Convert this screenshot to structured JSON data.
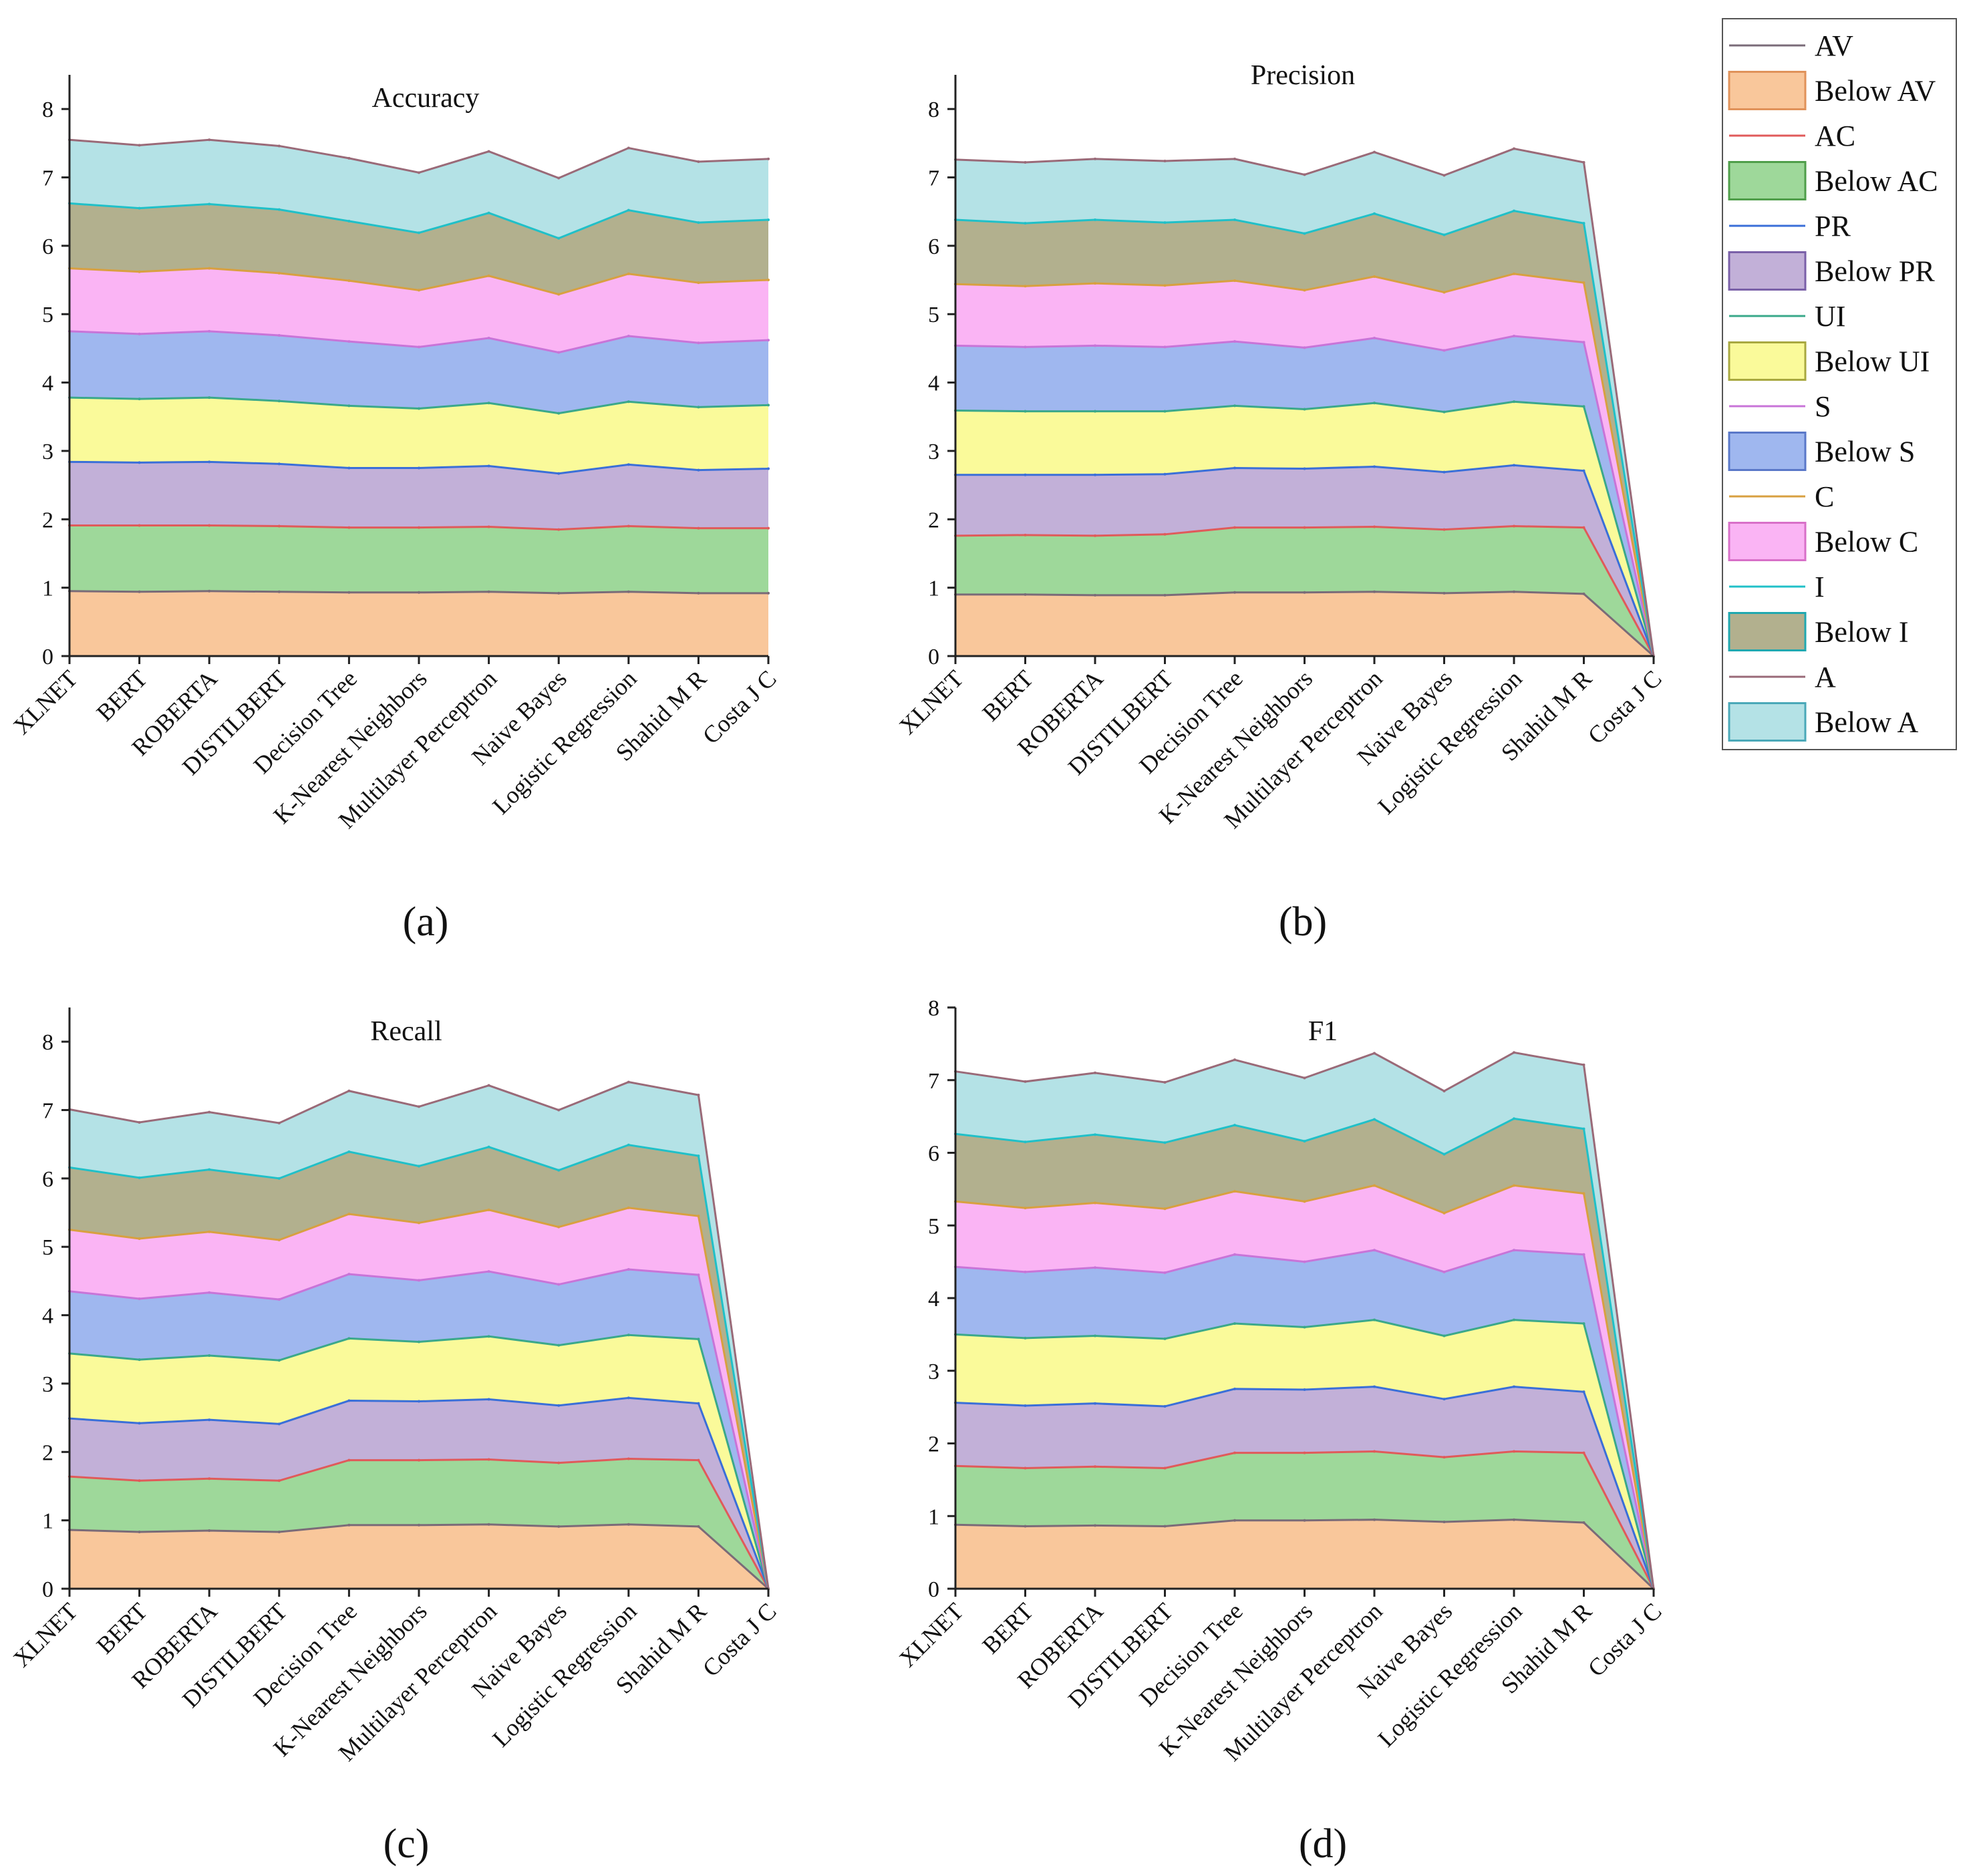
{
  "figure": {
    "legend": {
      "placement": "right",
      "entries": [
        {
          "label": "AV",
          "kind": "line",
          "color": "#7a6b78"
        },
        {
          "label": "Below AV",
          "kind": "area",
          "color": "#f9c79b",
          "border": "#e0925a"
        },
        {
          "label": "AC",
          "kind": "line",
          "color": "#e05a5a"
        },
        {
          "label": "Below AC",
          "kind": "area",
          "color": "#9ed89a",
          "border": "#4f9e4a"
        },
        {
          "label": "PR",
          "kind": "line",
          "color": "#3a6fd8"
        },
        {
          "label": "Below PR",
          "kind": "area",
          "color": "#c2b0d8",
          "border": "#7a60a8"
        },
        {
          "label": "UI",
          "kind": "line",
          "color": "#3aa88a"
        },
        {
          "label": "Below UI",
          "kind": "area",
          "color": "#fafa9a",
          "border": "#a8a840"
        },
        {
          "label": "S",
          "kind": "line",
          "color": "#c874d8"
        },
        {
          "label": "Below S",
          "kind": "area",
          "color": "#9fb7ef",
          "border": "#5a78c8"
        },
        {
          "label": "C",
          "kind": "line",
          "color": "#d8a040"
        },
        {
          "label": "Below C",
          "kind": "area",
          "color": "#fab4f4",
          "border": "#d870c8"
        },
        {
          "label": "I",
          "kind": "line",
          "color": "#20c0c8"
        },
        {
          "label": "Below I",
          "kind": "area",
          "color": "#b2b08e",
          "border": "#20a8b0"
        },
        {
          "label": "A",
          "kind": "line",
          "color": "#9a6a78"
        },
        {
          "label": "Below A",
          "kind": "area",
          "color": "#b4e2e6",
          "border": "#4aa8b8"
        }
      ]
    }
  },
  "chart_data": [
    {
      "type": "area",
      "stacked": true,
      "panel_label": "(a)",
      "title": "Accuracy",
      "xlabel": "",
      "ylabel": "",
      "ylim": [
        0,
        8.5
      ],
      "yticks": [
        "0",
        "1",
        "2",
        "3",
        "4",
        "5",
        "6",
        "7",
        "8"
      ],
      "categories": [
        "XLNET",
        "BERT",
        "ROBERTA",
        "DISTILBERT",
        "Decision Tree",
        "K-Nearest Neighbors",
        "Multilayer Perceptron",
        "Naive Bayes",
        "Logistic Regression",
        "Shahid M R",
        "Costa J C"
      ],
      "series": [
        {
          "name": "AV",
          "values": [
            0.95,
            0.94,
            0.95,
            0.94,
            0.93,
            0.93,
            0.94,
            0.92,
            0.94,
            0.92,
            0.92
          ]
        },
        {
          "name": "AC",
          "values": [
            0.96,
            0.97,
            0.96,
            0.96,
            0.95,
            0.95,
            0.95,
            0.93,
            0.96,
            0.95,
            0.95
          ]
        },
        {
          "name": "PR",
          "values": [
            0.93,
            0.92,
            0.93,
            0.91,
            0.87,
            0.87,
            0.89,
            0.82,
            0.9,
            0.85,
            0.87
          ]
        },
        {
          "name": "UI",
          "values": [
            0.94,
            0.93,
            0.94,
            0.92,
            0.91,
            0.87,
            0.92,
            0.88,
            0.92,
            0.92,
            0.93
          ]
        },
        {
          "name": "S",
          "values": [
            0.97,
            0.95,
            0.97,
            0.96,
            0.94,
            0.9,
            0.95,
            0.89,
            0.96,
            0.94,
            0.95
          ]
        },
        {
          "name": "C",
          "values": [
            0.92,
            0.91,
            0.92,
            0.91,
            0.89,
            0.83,
            0.91,
            0.85,
            0.91,
            0.88,
            0.88
          ]
        },
        {
          "name": "I",
          "values": [
            0.95,
            0.93,
            0.94,
            0.93,
            0.87,
            0.84,
            0.92,
            0.82,
            0.93,
            0.88,
            0.88
          ]
        },
        {
          "name": "A",
          "values": [
            0.93,
            0.92,
            0.94,
            0.93,
            0.92,
            0.88,
            0.9,
            0.88,
            0.91,
            0.89,
            0.89
          ]
        }
      ]
    },
    {
      "type": "area",
      "stacked": true,
      "panel_label": "(b)",
      "title": "Precision",
      "xlabel": "",
      "ylabel": "",
      "ylim": [
        0,
        8.5
      ],
      "yticks": [
        "0",
        "1",
        "2",
        "3",
        "4",
        "5",
        "6",
        "7",
        "8"
      ],
      "categories": [
        "XLNET",
        "BERT",
        "ROBERTA",
        "DISTILBERT",
        "Decision Tree",
        "K-Nearest Neighbors",
        "Multilayer Perceptron",
        "Naive Bayes",
        "Logistic Regression",
        "Shahid M R",
        "Costa J C"
      ],
      "series": [
        {
          "name": "AV",
          "values": [
            0.9,
            0.9,
            0.89,
            0.89,
            0.93,
            0.93,
            0.94,
            0.92,
            0.94,
            0.91,
            0
          ]
        },
        {
          "name": "AC",
          "values": [
            0.86,
            0.87,
            0.87,
            0.89,
            0.95,
            0.95,
            0.95,
            0.93,
            0.96,
            0.97,
            0
          ]
        },
        {
          "name": "PR",
          "values": [
            0.89,
            0.88,
            0.89,
            0.88,
            0.87,
            0.86,
            0.88,
            0.84,
            0.89,
            0.83,
            0
          ]
        },
        {
          "name": "UI",
          "values": [
            0.94,
            0.93,
            0.93,
            0.92,
            0.91,
            0.87,
            0.93,
            0.88,
            0.93,
            0.94,
            0
          ]
        },
        {
          "name": "S",
          "values": [
            0.95,
            0.94,
            0.96,
            0.94,
            0.94,
            0.9,
            0.95,
            0.9,
            0.96,
            0.94,
            0
          ]
        },
        {
          "name": "C",
          "values": [
            0.9,
            0.89,
            0.91,
            0.9,
            0.89,
            0.84,
            0.9,
            0.85,
            0.91,
            0.87,
            0
          ]
        },
        {
          "name": "I",
          "values": [
            0.94,
            0.92,
            0.93,
            0.92,
            0.89,
            0.83,
            0.92,
            0.84,
            0.92,
            0.87,
            0
          ]
        },
        {
          "name": "A",
          "values": [
            0.88,
            0.89,
            0.89,
            0.9,
            0.89,
            0.86,
            0.9,
            0.87,
            0.91,
            0.89,
            0
          ]
        }
      ]
    },
    {
      "type": "area",
      "stacked": true,
      "panel_label": "(c)",
      "title": "Recall",
      "xlabel": "",
      "ylabel": "",
      "ylim": [
        0,
        8.5
      ],
      "yticks": [
        "0",
        "1",
        "2",
        "3",
        "4",
        "5",
        "6",
        "7",
        "8"
      ],
      "categories": [
        "XLNET",
        "BERT",
        "ROBERTA",
        "DISTILBERT",
        "Decision Tree",
        "K-Nearest Neighbors",
        "Multilayer Perceptron",
        "Naive Bayes",
        "Logistic Regression",
        "Shahid M R",
        "Costa J C"
      ],
      "series": [
        {
          "name": "AV",
          "values": [
            0.86,
            0.83,
            0.85,
            0.83,
            0.93,
            0.93,
            0.94,
            0.91,
            0.94,
            0.91,
            0
          ]
        },
        {
          "name": "AC",
          "values": [
            0.78,
            0.75,
            0.76,
            0.75,
            0.95,
            0.95,
            0.95,
            0.93,
            0.96,
            0.97,
            0
          ]
        },
        {
          "name": "PR",
          "values": [
            0.85,
            0.84,
            0.86,
            0.83,
            0.87,
            0.86,
            0.88,
            0.84,
            0.89,
            0.83,
            0
          ]
        },
        {
          "name": "UI",
          "values": [
            0.95,
            0.93,
            0.94,
            0.93,
            0.91,
            0.87,
            0.92,
            0.88,
            0.92,
            0.94,
            0
          ]
        },
        {
          "name": "S",
          "values": [
            0.91,
            0.89,
            0.92,
            0.89,
            0.94,
            0.9,
            0.95,
            0.89,
            0.96,
            0.94,
            0
          ]
        },
        {
          "name": "C",
          "values": [
            0.9,
            0.88,
            0.89,
            0.87,
            0.88,
            0.84,
            0.9,
            0.84,
            0.9,
            0.86,
            0
          ]
        },
        {
          "name": "I",
          "values": [
            0.91,
            0.89,
            0.91,
            0.9,
            0.91,
            0.83,
            0.92,
            0.83,
            0.92,
            0.88,
            0
          ]
        },
        {
          "name": "A",
          "values": [
            0.85,
            0.81,
            0.84,
            0.81,
            0.89,
            0.87,
            0.9,
            0.88,
            0.92,
            0.89,
            0
          ]
        }
      ]
    },
    {
      "type": "area",
      "stacked": true,
      "panel_label": "(d)",
      "title": "F1",
      "xlabel": "",
      "ylabel": "",
      "ylim": [
        0,
        8
      ],
      "yticks": [
        "0",
        "1",
        "2",
        "3",
        "4",
        "5",
        "6",
        "7",
        "8"
      ],
      "categories": [
        "XLNET",
        "BERT",
        "ROBERTA",
        "DISTILBERT",
        "Decision Tree",
        "K-Nearest Neighbors",
        "Multilayer Perceptron",
        "Naive Bayes",
        "Logistic Regression",
        "Shahid M R",
        "Costa J C"
      ],
      "series": [
        {
          "name": "AV",
          "values": [
            0.88,
            0.86,
            0.87,
            0.86,
            0.94,
            0.94,
            0.95,
            0.92,
            0.95,
            0.91,
            0
          ]
        },
        {
          "name": "AC",
          "values": [
            0.81,
            0.8,
            0.81,
            0.8,
            0.93,
            0.93,
            0.94,
            0.89,
            0.94,
            0.96,
            0
          ]
        },
        {
          "name": "PR",
          "values": [
            0.87,
            0.86,
            0.87,
            0.85,
            0.88,
            0.87,
            0.89,
            0.8,
            0.89,
            0.84,
            0
          ]
        },
        {
          "name": "UI",
          "values": [
            0.94,
            0.93,
            0.93,
            0.93,
            0.9,
            0.86,
            0.92,
            0.87,
            0.92,
            0.94,
            0
          ]
        },
        {
          "name": "S",
          "values": [
            0.93,
            0.91,
            0.94,
            0.91,
            0.95,
            0.9,
            0.96,
            0.88,
            0.96,
            0.95,
            0
          ]
        },
        {
          "name": "C",
          "values": [
            0.9,
            0.88,
            0.89,
            0.88,
            0.87,
            0.83,
            0.89,
            0.81,
            0.89,
            0.84,
            0
          ]
        },
        {
          "name": "I",
          "values": [
            0.93,
            0.91,
            0.94,
            0.91,
            0.91,
            0.83,
            0.91,
            0.81,
            0.92,
            0.89,
            0
          ]
        },
        {
          "name": "A",
          "values": [
            0.86,
            0.83,
            0.85,
            0.83,
            0.9,
            0.87,
            0.91,
            0.87,
            0.91,
            0.88,
            0
          ]
        }
      ]
    }
  ]
}
